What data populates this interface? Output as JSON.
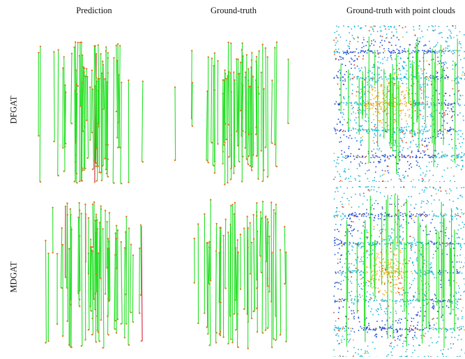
{
  "columns": [
    "Prediction",
    "Ground-truth",
    "Ground-truth with point clouds"
  ],
  "rows": [
    "DFGAT",
    "MDGAT"
  ],
  "colors": {
    "correct_match": "#22e022",
    "wrong_match": "#d81e3c",
    "keypoint": "#e0781e",
    "cloud_far": "#1f4fd8",
    "cloud_mid": "#20b8d8",
    "cloud_near": "#e8b020",
    "cloud_close": "#e03a1a"
  }
}
